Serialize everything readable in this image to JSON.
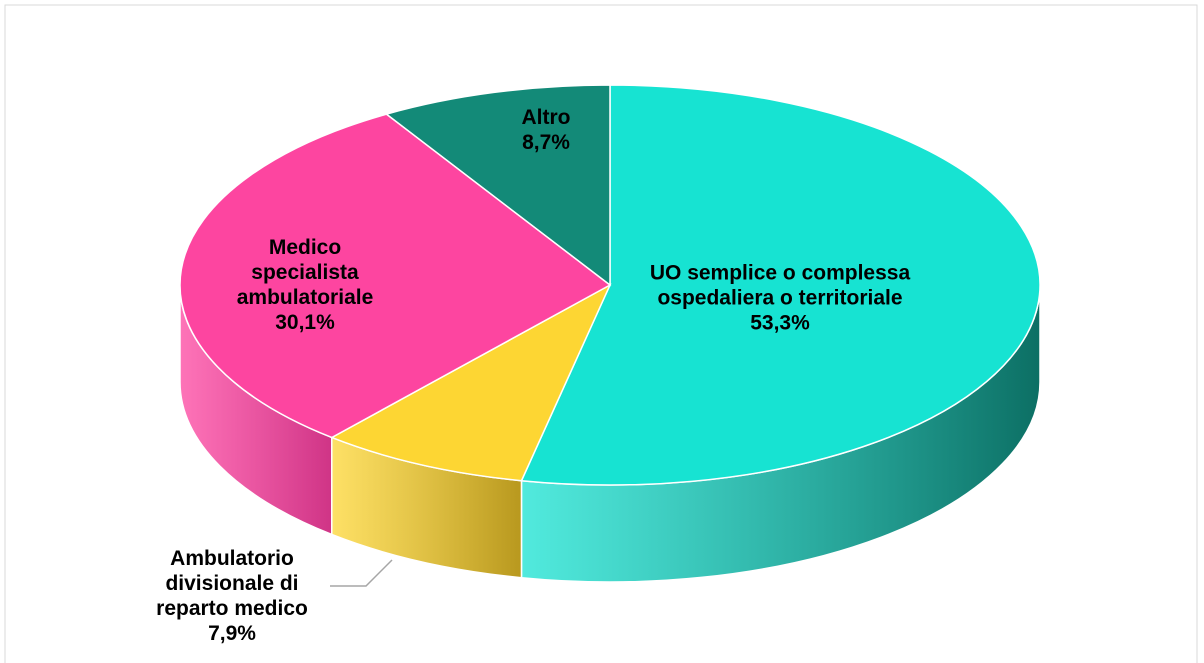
{
  "chart_data": {
    "type": "pie",
    "categories": [
      "UO semplice o complessa ospedaliera o territoriale",
      "Ambulatorio divisionale di reparto medico",
      "Medico specialista ambulatoriale",
      "Altro"
    ],
    "values": [
      53.3,
      7.9,
      30.1,
      8.7
    ],
    "value_labels": [
      "53,3%",
      "7,9%",
      "30,1%",
      "8,7%"
    ],
    "colors": [
      "#17e3d2",
      "#fdd633",
      "#fd45a0",
      "#138a78"
    ],
    "side_colors": [
      "#0c6f64",
      "#b8981e",
      "#cf3486",
      "#0b5c50"
    ]
  }
}
